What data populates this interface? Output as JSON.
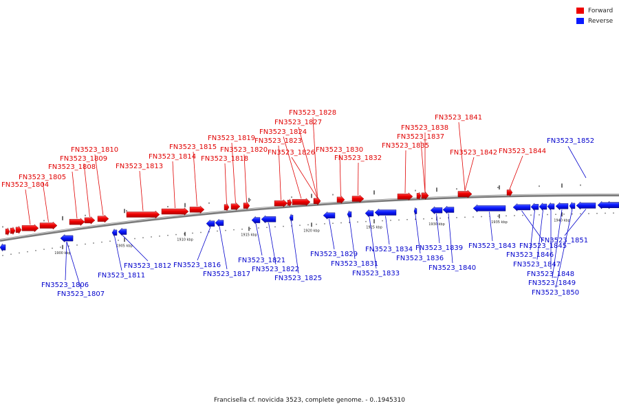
{
  "legend": {
    "forward": {
      "label": "Forward",
      "color": "#ee0000"
    },
    "reverse": {
      "label": "Reverse",
      "color": "#0a1aff"
    }
  },
  "caption": "Francisella cf. novicida 3523, complete genome. - 0..1945310",
  "scale_labels": [
    "1900 kbp",
    "1905 kbp",
    "1910 kbp",
    "1915 kbp",
    "1920 kbp",
    "1925 kbp",
    "1930 kbp",
    "1935 kbp",
    "1940 kbp"
  ],
  "forward_genes": [
    "FN3523_1804",
    "FN3523_1805",
    "FN3523_1808",
    "FN3523_1809",
    "FN3523_1810",
    "FN3523_1813",
    "FN3523_1814",
    "FN3523_1815",
    "FN3523_1818",
    "FN3523_1819",
    "FN3523_1820",
    "FN3523_1823",
    "FN3523_1824",
    "FN3523_1826",
    "FN3523_1827",
    "FN3523_1828",
    "FN3523_1830",
    "FN3523_1832",
    "FN3523_1835",
    "FN3523_1837",
    "FN3523_1838",
    "FN3523_1841",
    "FN3523_1842",
    "FN3523_1844"
  ],
  "reverse_genes": [
    "FN3523_1806",
    "FN3523_1807",
    "FN3523_1811",
    "FN3523_1812",
    "FN3523_1816",
    "FN3523_1817",
    "FN3523_1821",
    "FN3523_1822",
    "FN3523_1825",
    "FN3523_1829",
    "FN3523_1831",
    "FN3523_1833",
    "FN3523_1834",
    "FN3523_1836",
    "FN3523_1839",
    "FN3523_1840",
    "FN3523_1843",
    "FN3523_1845",
    "FN3523_1846",
    "FN3523_1847",
    "FN3523_1848",
    "FN3523_1849",
    "FN3523_1850",
    "FN3523_1851",
    "FN3523_1852"
  ]
}
